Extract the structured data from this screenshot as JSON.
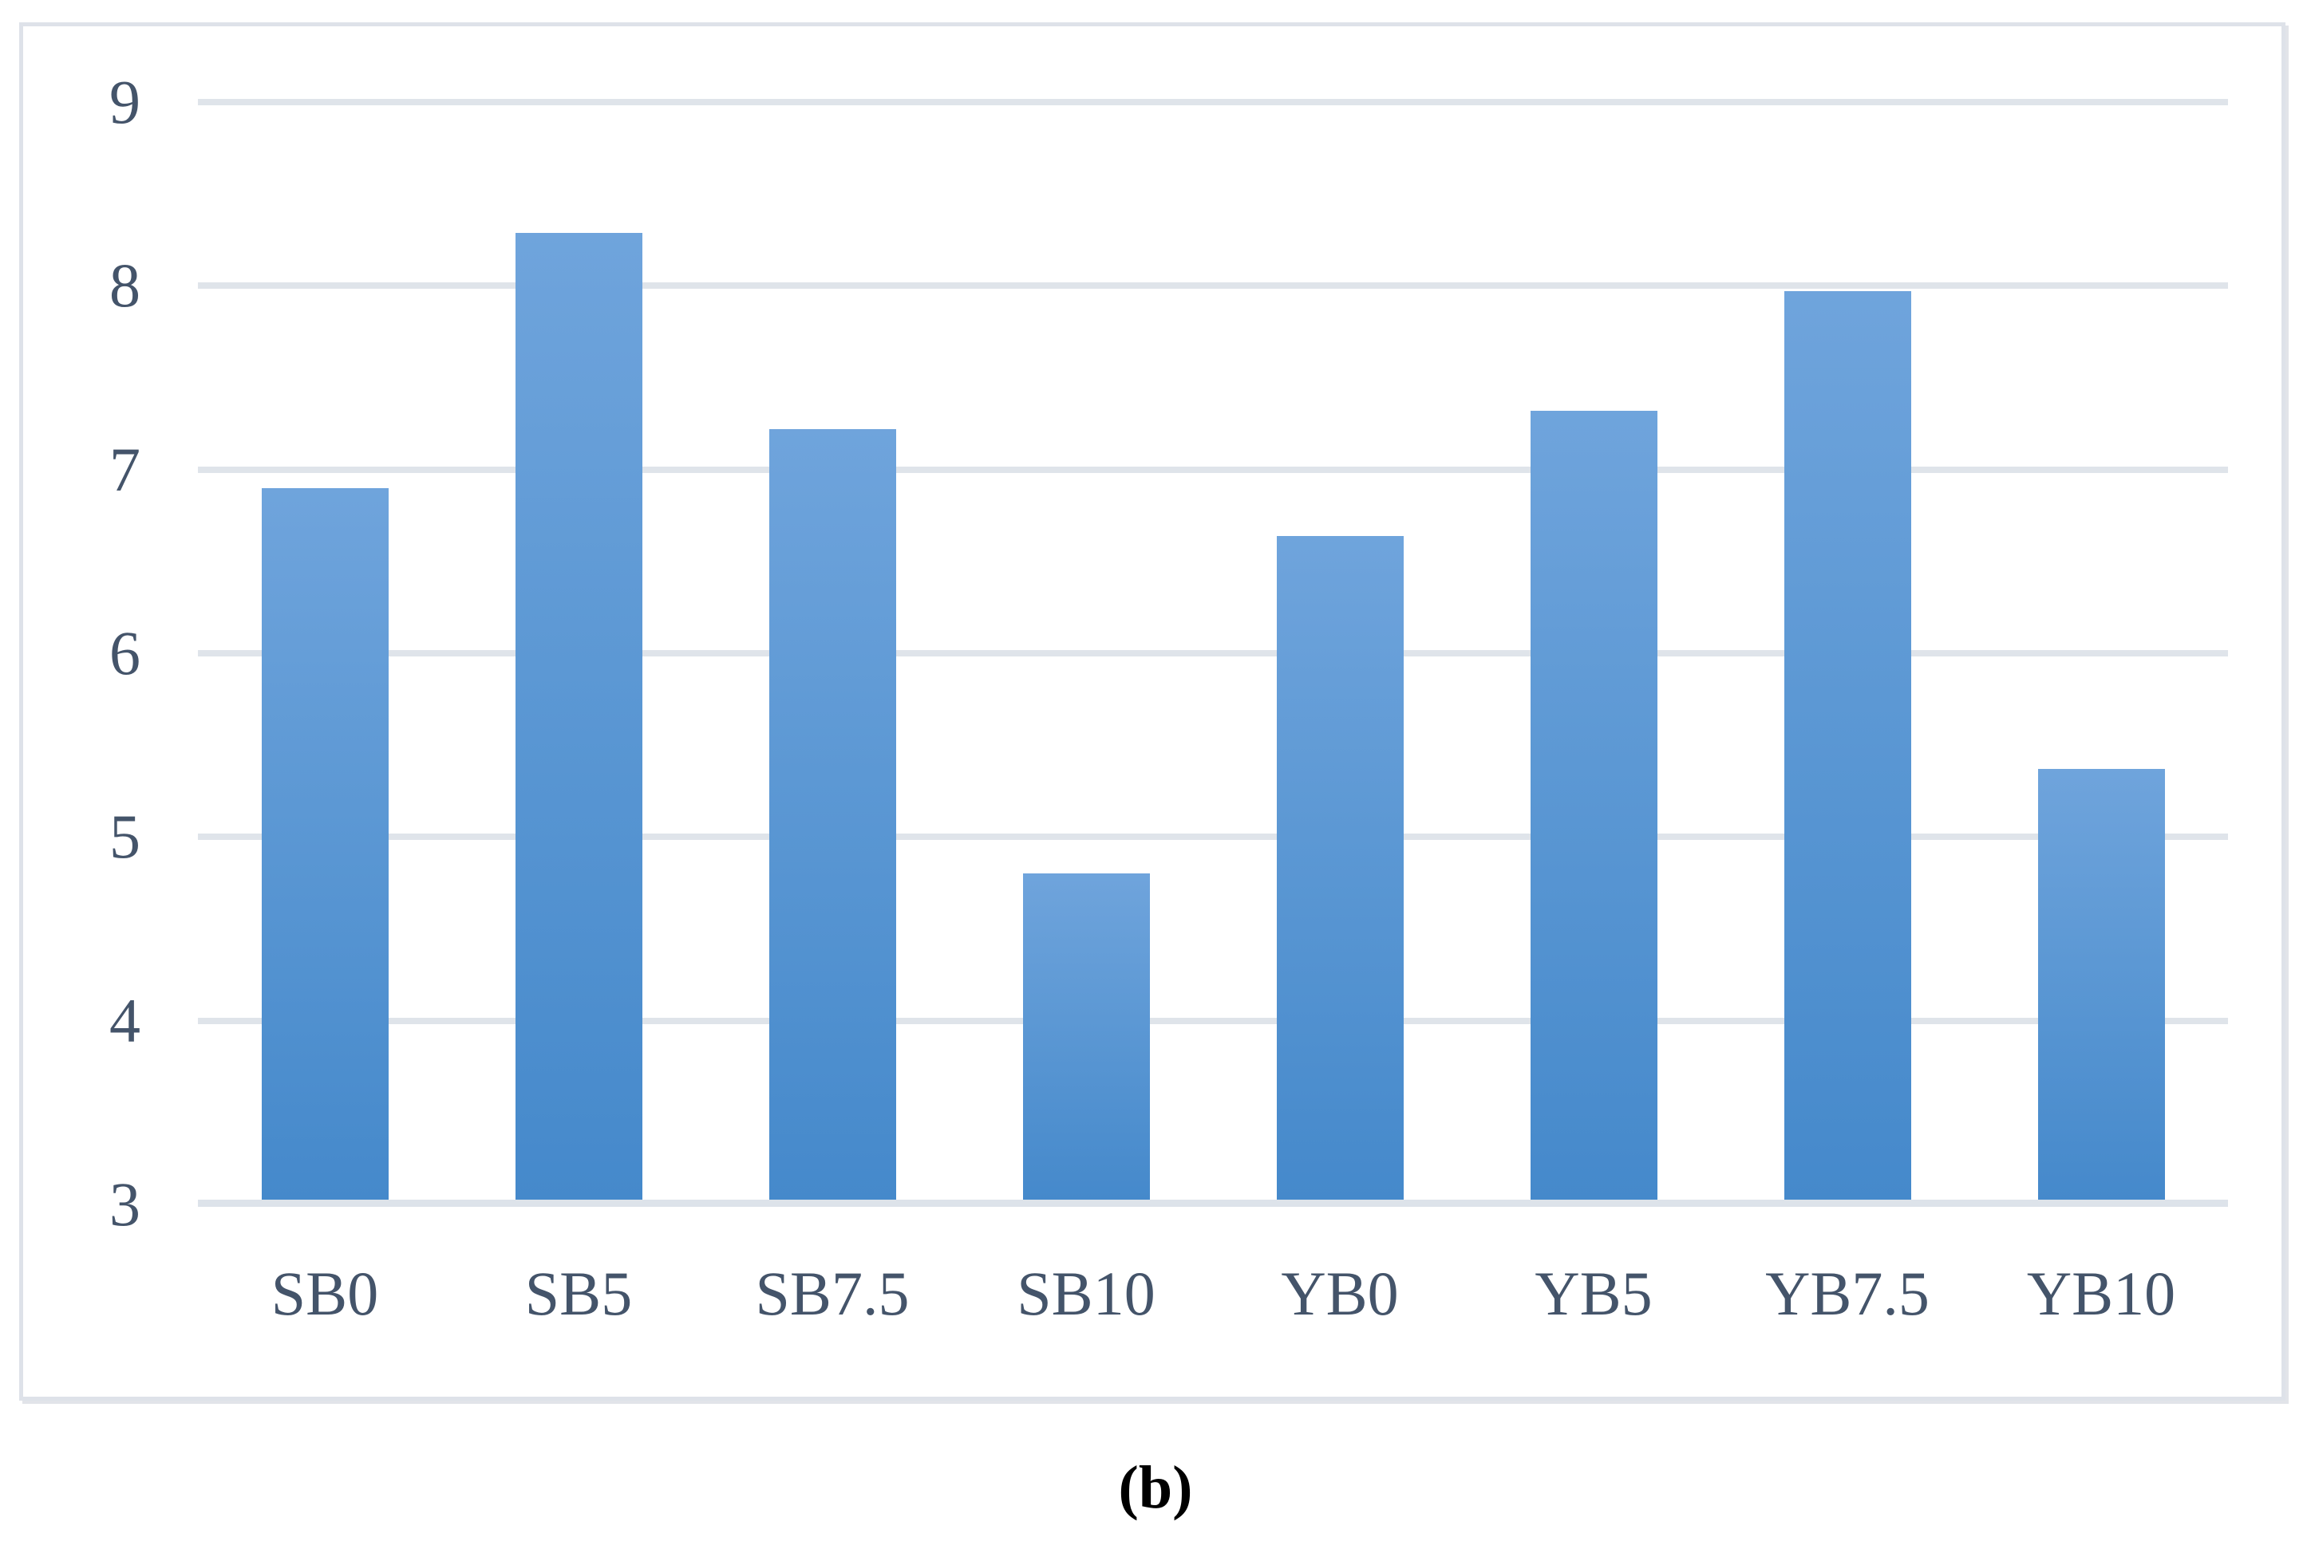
{
  "figure": {
    "caption": "(b)"
  },
  "chart_data": {
    "type": "bar",
    "title": "",
    "xlabel": "",
    "ylabel": "",
    "categories": [
      "SB0",
      "SB5",
      "SB7.5",
      "SB10",
      "YB0",
      "YB5",
      "YB7.5",
      "YB10"
    ],
    "values": [
      6.9,
      8.29,
      7.22,
      4.8,
      6.64,
      7.32,
      7.97,
      5.37
    ],
    "ylim": [
      3,
      9
    ],
    "yticks": [
      9,
      8,
      7,
      6,
      5,
      4,
      3
    ],
    "grid": true,
    "legend": false,
    "caption": "(b)",
    "colors": {
      "bar_top": "#6FA4DC",
      "bar_bottom": "#4589CB",
      "gridline": "#DFE4EA",
      "axis_line": "#DDE3EA",
      "tick_label": "#44546A",
      "frame_border": "#DEE2E9",
      "caption_text": "#000000"
    }
  }
}
